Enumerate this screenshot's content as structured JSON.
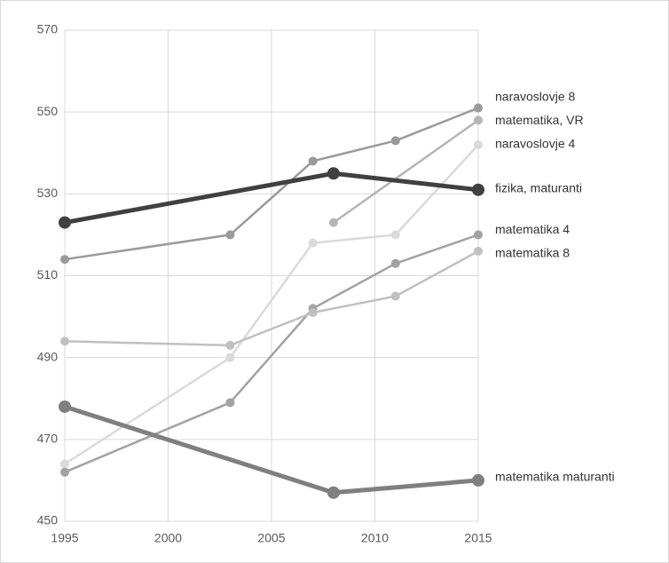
{
  "chart_data": {
    "type": "line",
    "xlim": [
      1995,
      2015
    ],
    "xticks": [
      1995,
      2000,
      2005,
      2010,
      2015
    ],
    "ylim": [
      450,
      570
    ],
    "yticks": [
      450,
      470,
      490,
      510,
      530,
      550,
      570
    ],
    "grid": true,
    "series": [
      {
        "name": "naravoslovje 8",
        "color": "#9a9a9a",
        "width": 2.5,
        "x": [
          1995,
          2003,
          2007,
          2011,
          2015
        ],
        "values": [
          514,
          520,
          538,
          543,
          551
        ]
      },
      {
        "name": "matematika, VR",
        "color": "#b5b5b5",
        "width": 2.5,
        "x": [
          2008,
          2015
        ],
        "values": [
          523,
          548
        ]
      },
      {
        "name": "naravoslovje 4",
        "color": "#dadada",
        "width": 2.5,
        "x": [
          1995,
          2003,
          2007,
          2011,
          2015
        ],
        "values": [
          464,
          490,
          518,
          520,
          542
        ]
      },
      {
        "name": "fizika, maturanti",
        "color": "#404040",
        "width": 5,
        "x": [
          1995,
          2008,
          2015
        ],
        "values": [
          523,
          535,
          531
        ]
      },
      {
        "name": "matematika 4",
        "color": "#a2a2a2",
        "width": 2.5,
        "x": [
          1995,
          2003,
          2007,
          2011,
          2015
        ],
        "values": [
          462,
          479,
          502,
          513,
          520
        ]
      },
      {
        "name": "matematika 8",
        "color": "#c0c0c0",
        "width": 2.5,
        "x": [
          1995,
          2003,
          2007,
          2011,
          2015
        ],
        "values": [
          494,
          493,
          501,
          505,
          516
        ]
      },
      {
        "name": "matematika maturanti",
        "color": "#7f7f7f",
        "width": 5,
        "x": [
          1995,
          2008,
          2015
        ],
        "values": [
          478,
          457,
          460
        ]
      }
    ]
  }
}
